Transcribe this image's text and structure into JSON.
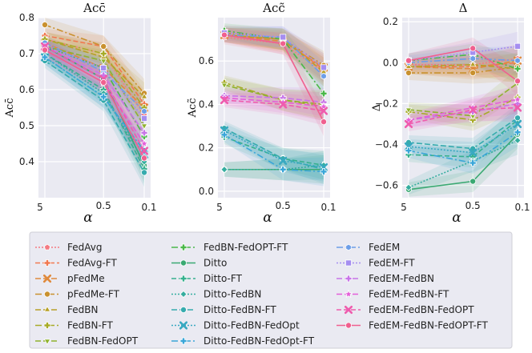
{
  "chart_data": {
    "type": "line",
    "x_categories": [
      "5",
      "0.5",
      "0.1"
    ],
    "xlabel": "α",
    "panels": [
      {
        "title": "Acc̄",
        "ylabel": "Acc̄",
        "ylim": [
          0.3,
          0.8
        ],
        "yticks": [
          "0.4",
          "0.5",
          "0.6",
          "0.7",
          "0.8"
        ],
        "ytick_values": [
          0.4,
          0.5,
          0.6,
          0.7,
          0.8
        ],
        "series": [
          {
            "name": "FedAvg",
            "values": [
              0.74,
              0.7,
              0.53
            ]
          },
          {
            "name": "FedAvg-FT",
            "values": [
              0.75,
              0.72,
              0.56
            ]
          },
          {
            "name": "pFedMe",
            "values": [
              0.73,
              0.66,
              0.55
            ]
          },
          {
            "name": "pFedMe-FT",
            "values": [
              0.78,
              0.72,
              0.59
            ]
          },
          {
            "name": "FedBN",
            "values": [
              0.74,
              0.69,
              0.58
            ]
          },
          {
            "name": "FedBN-FT",
            "values": [
              0.74,
              0.7,
              0.55
            ]
          },
          {
            "name": "FedBN-FedOPT",
            "values": [
              0.72,
              0.68,
              0.5
            ]
          },
          {
            "name": "FedBN-FedOPT-FT",
            "values": [
              0.72,
              0.66,
              0.47
            ]
          },
          {
            "name": "Ditto",
            "values": [
              0.72,
              0.63,
              0.39
            ]
          },
          {
            "name": "Ditto-FT",
            "values": [
              0.7,
              0.6,
              0.38
            ]
          },
          {
            "name": "Ditto-FedBN",
            "values": [
              0.7,
              0.59,
              0.4
            ]
          },
          {
            "name": "Ditto-FedBN-FT",
            "values": [
              0.68,
              0.57,
              0.37
            ]
          },
          {
            "name": "Ditto-FedBN-FedOpt",
            "values": [
              0.69,
              0.58,
              0.42
            ]
          },
          {
            "name": "Ditto-FedBN-FedOpt-FT",
            "values": [
              0.69,
              0.58,
              0.43
            ]
          },
          {
            "name": "FedEM",
            "values": [
              0.73,
              0.65,
              0.54
            ]
          },
          {
            "name": "FedEM-FT",
            "values": [
              0.72,
              0.66,
              0.52
            ]
          },
          {
            "name": "FedEM-FedBN",
            "values": [
              0.72,
              0.64,
              0.48
            ]
          },
          {
            "name": "FedEM-FedBN-FT",
            "values": [
              0.71,
              0.62,
              0.45
            ]
          },
          {
            "name": "FedEM-FedBN-FedOPT",
            "values": [
              0.72,
              0.63,
              0.43
            ]
          },
          {
            "name": "FedEM-FedBN-FedOPT-FT",
            "values": [
              0.71,
              0.62,
              0.41
            ]
          }
        ]
      },
      {
        "title": "Acc̃",
        "ylabel": "Acc̃",
        "ylim": [
          -0.03,
          0.8
        ],
        "yticks": [
          "0.0",
          "0.2",
          "0.4",
          "0.6"
        ],
        "ytick_values": [
          0.0,
          0.2,
          0.4,
          0.6
        ],
        "series": [
          {
            "name": "FedAvg",
            "values": [
              0.71,
              0.68,
              0.55
            ]
          },
          {
            "name": "FedAvg-FT",
            "values": [
              0.72,
              0.7,
              0.56
            ]
          },
          {
            "name": "pFedMe",
            "values": [
              0.72,
              0.69,
              0.57
            ]
          },
          {
            "name": "pFedMe-FT",
            "values": [
              0.73,
              0.7,
              0.58
            ]
          },
          {
            "name": "FedBN",
            "values": [
              0.72,
              0.7,
              0.55
            ]
          },
          {
            "name": "FedBN-FT",
            "values": [
              0.5,
              0.42,
              0.39
            ]
          },
          {
            "name": "FedBN-FedOPT",
            "values": [
              0.49,
              0.42,
              0.4
            ]
          },
          {
            "name": "FedBN-FedOPT-FT",
            "values": [
              0.74,
              0.7,
              0.45
            ]
          },
          {
            "name": "Ditto",
            "values": [
              0.1,
              0.1,
              0.1
            ]
          },
          {
            "name": "Ditto-FT",
            "values": [
              0.25,
              0.15,
              0.12
            ]
          },
          {
            "name": "Ditto-FedBN",
            "values": [
              0.1,
              0.1,
              0.12
            ]
          },
          {
            "name": "Ditto-FedBN-FT",
            "values": [
              0.29,
              0.15,
              0.1
            ]
          },
          {
            "name": "Ditto-FedBN-FedOpt",
            "values": [
              0.28,
              0.14,
              0.11
            ]
          },
          {
            "name": "Ditto-FedBN-FedOpt-FT",
            "values": [
              0.26,
              0.1,
              0.09
            ]
          },
          {
            "name": "FedEM",
            "values": [
              0.72,
              0.71,
              0.53
            ]
          },
          {
            "name": "FedEM-FT",
            "values": [
              0.73,
              0.71,
              0.57
            ]
          },
          {
            "name": "FedEM-FedBN",
            "values": [
              0.44,
              0.43,
              0.41
            ]
          },
          {
            "name": "FedEM-FedBN-FT",
            "values": [
              0.43,
              0.41,
              0.39
            ]
          },
          {
            "name": "FedEM-FedBN-FedOPT",
            "values": [
              0.42,
              0.4,
              0.37
            ]
          },
          {
            "name": "FedEM-FedBN-FedOPT-FT",
            "values": [
              0.72,
              0.68,
              0.32
            ]
          }
        ]
      },
      {
        "title": "Δ",
        "ylabel": "Δ",
        "ylim": [
          -0.66,
          0.22
        ],
        "yticks": [
          "−0.6",
          "−0.4",
          "−0.2",
          "0.0",
          "0.2"
        ],
        "ytick_values": [
          -0.6,
          -0.4,
          -0.2,
          0.0,
          0.2
        ],
        "series": [
          {
            "name": "FedAvg",
            "values": [
              -0.01,
              -0.01,
              0.02
            ]
          },
          {
            "name": "FedAvg-FT",
            "values": [
              -0.02,
              -0.02,
              0.0
            ]
          },
          {
            "name": "pFedMe",
            "values": [
              -0.02,
              -0.03,
              0.01
            ]
          },
          {
            "name": "pFedMe-FT",
            "values": [
              -0.05,
              -0.05,
              -0.02
            ]
          },
          {
            "name": "FedBN",
            "values": [
              -0.02,
              -0.01,
              -0.03
            ]
          },
          {
            "name": "FedBN-FT",
            "values": [
              -0.24,
              -0.28,
              -0.17
            ]
          },
          {
            "name": "FedBN-FedOPT",
            "values": [
              -0.23,
              -0.26,
              -0.1
            ]
          },
          {
            "name": "FedBN-FedOPT-FT",
            "values": [
              0.01,
              0.04,
              -0.03
            ]
          },
          {
            "name": "Ditto",
            "values": [
              -0.62,
              -0.58,
              -0.35
            ]
          },
          {
            "name": "Ditto-FT",
            "values": [
              -0.45,
              -0.46,
              -0.28
            ]
          },
          {
            "name": "Ditto-FedBN",
            "values": [
              -0.61,
              -0.48,
              -0.38
            ]
          },
          {
            "name": "Ditto-FedBN-FT",
            "values": [
              -0.39,
              -0.42,
              -0.27
            ]
          },
          {
            "name": "Ditto-FedBN-FedOpt",
            "values": [
              -0.41,
              -0.44,
              -0.3
            ]
          },
          {
            "name": "Ditto-FedBN-FedOpt-FT",
            "values": [
              -0.43,
              -0.49,
              -0.34
            ]
          },
          {
            "name": "FedEM",
            "values": [
              0.0,
              0.02,
              0.01
            ]
          },
          {
            "name": "FedEM-FT",
            "values": [
              0.01,
              0.05,
              0.08
            ]
          },
          {
            "name": "FedEM-FedBN",
            "values": [
              -0.28,
              -0.24,
              -0.2
            ]
          },
          {
            "name": "FedEM-FedBN-FT",
            "values": [
              -0.28,
              -0.22,
              -0.18
            ]
          },
          {
            "name": "FedEM-FedBN-FedOPT",
            "values": [
              -0.3,
              -0.23,
              -0.22
            ]
          },
          {
            "name": "FedEM-FedBN-FedOPT-FT",
            "values": [
              0.01,
              0.07,
              -0.09
            ]
          }
        ]
      }
    ],
    "legend": {
      "placement": "bottom",
      "columns": [
        [
          "FedAvg",
          "FedAvg-FT",
          "pFedMe",
          "pFedMe-FT",
          "FedBN",
          "FedBN-FT",
          "FedBN-FedOPT"
        ],
        [
          "FedBN-FedOPT-FT",
          "Ditto",
          "Ditto-FT",
          "Ditto-FedBN",
          "Ditto-FedBN-FT",
          "Ditto-FedBN-FedOpt",
          "Ditto-FedBN-FedOpt-FT"
        ],
        [
          "FedEM",
          "FedEM-FT",
          "FedEM-FedBN",
          "FedEM-FedBN-FT",
          "FedEM-FedBN-FedOPT",
          "FedEM-FedBN-FedOPT-FT"
        ]
      ]
    },
    "styles": {
      "FedAvg": {
        "color": "#f47a82",
        "dash": "2,2",
        "marker": "pentagon"
      },
      "FedAvg-FT": {
        "color": "#f07850",
        "dash": "6,3",
        "marker": "plus"
      },
      "pFedMe": {
        "color": "#e08a3c",
        "dash": "7,3",
        "marker": "x"
      },
      "pFedMe-FT": {
        "color": "#c9912f",
        "dash": "8,3,2,3",
        "marker": "circle"
      },
      "FedBN": {
        "color": "#b7a027",
        "dash": "7,3",
        "marker": "triangle"
      },
      "FedBN-FT": {
        "color": "#a7ab28",
        "dash": "8,3,2,3",
        "marker": "plus"
      },
      "FedBN-FedOPT": {
        "color": "#8fb22d",
        "dash": "7,3",
        "marker": "triangle-down"
      },
      "FedBN-FedOPT-FT": {
        "color": "#4bb84a",
        "dash": "8,3,2,3",
        "marker": "plus"
      },
      "Ditto": {
        "color": "#3aa972",
        "dash": "",
        "marker": "circle"
      },
      "Ditto-FT": {
        "color": "#36b08e",
        "dash": "6,3",
        "marker": "plus"
      },
      "Ditto-FedBN": {
        "color": "#35ad9f",
        "dash": "2,2",
        "marker": "diamond"
      },
      "Ditto-FedBN-FT": {
        "color": "#36abae",
        "dash": "7,3",
        "marker": "circle"
      },
      "Ditto-FedBN-FedOpt": {
        "color": "#38a9c1",
        "dash": "2,2",
        "marker": "x"
      },
      "Ditto-FedBN-FedOpt-FT": {
        "color": "#3aa6d8",
        "dash": "8,3,2,3",
        "marker": "plus"
      },
      "FedEM": {
        "color": "#6d9ee8",
        "dash": "8,3,2,3",
        "marker": "hexagon"
      },
      "FedEM-FT": {
        "color": "#a58ef0",
        "dash": "2,2",
        "marker": "square"
      },
      "FedEM-FedBN": {
        "color": "#c875e8",
        "dash": "7,3",
        "marker": "plus"
      },
      "FedEM-FedBN-FT": {
        "color": "#e45fd9",
        "dash": "7,3",
        "marker": "star"
      },
      "FedEM-FedBN-FedOPT": {
        "color": "#ef5cae",
        "dash": "6,3",
        "marker": "x"
      },
      "FedEM-FedBN-FedOPT-FT": {
        "color": "#f0608f",
        "dash": "",
        "marker": "circle"
      }
    }
  }
}
